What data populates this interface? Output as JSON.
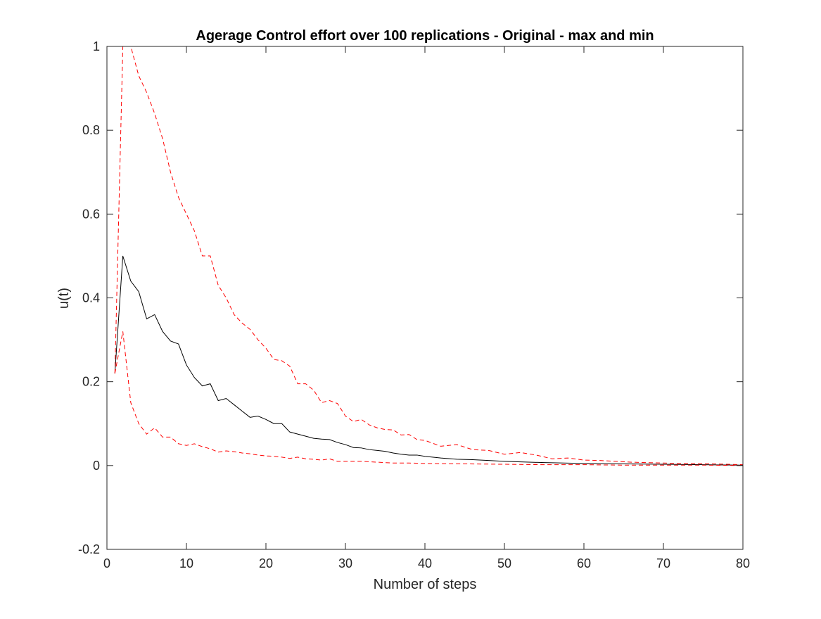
{
  "chart_data": {
    "type": "line",
    "title": "Agerage Control effort over 100 replications - Original - max and min",
    "xlabel": "Number of steps",
    "ylabel": "u(t)",
    "xlim": [
      0,
      80
    ],
    "ylim": [
      -0.2,
      1
    ],
    "xticks": [
      0,
      10,
      20,
      30,
      40,
      50,
      60,
      70,
      80
    ],
    "yticks": [
      -0.2,
      0,
      0.2,
      0.4,
      0.6,
      0.8,
      1
    ],
    "xtick_labels": [
      "0",
      "10",
      "20",
      "30",
      "40",
      "50",
      "60",
      "70",
      "80"
    ],
    "ytick_labels": [
      "-0.2",
      "0",
      "0.2",
      "0.4",
      "0.6",
      "0.8",
      "1"
    ],
    "grid": false,
    "legend": "none",
    "series": [
      {
        "role": "average",
        "color": "#000000",
        "style": "solid",
        "x": [
          1,
          2,
          3,
          4,
          5,
          6,
          7,
          8,
          9,
          10,
          11,
          12,
          13,
          14,
          15,
          16,
          17,
          18,
          19,
          20,
          21,
          22,
          23,
          24,
          25,
          26,
          27,
          28,
          29,
          30,
          31,
          32,
          33,
          34,
          35,
          36,
          37,
          38,
          39,
          40,
          42,
          44,
          46,
          48,
          50,
          55,
          60,
          65,
          70,
          75,
          80
        ],
        "y": [
          0.22,
          0.5,
          0.44,
          0.415,
          0.35,
          0.36,
          0.32,
          0.297,
          0.29,
          0.24,
          0.21,
          0.19,
          0.195,
          0.155,
          0.16,
          0.145,
          0.13,
          0.115,
          0.118,
          0.11,
          0.1,
          0.1,
          0.08,
          0.075,
          0.07,
          0.065,
          0.063,
          0.062,
          0.055,
          0.05,
          0.043,
          0.042,
          0.038,
          0.036,
          0.034,
          0.03,
          0.027,
          0.025,
          0.025,
          0.022,
          0.018,
          0.015,
          0.014,
          0.012,
          0.01,
          0.007,
          0.005,
          0.004,
          0.003,
          0.002,
          0.001
        ]
      },
      {
        "role": "max",
        "color": "#ff0000",
        "style": "dashed",
        "x": [
          1,
          2,
          3,
          4,
          5,
          6,
          7,
          8,
          9,
          10,
          11,
          12,
          13,
          14,
          15,
          16,
          17,
          18,
          19,
          20,
          21,
          22,
          23,
          24,
          25,
          26,
          27,
          28,
          29,
          30,
          31,
          32,
          33,
          34,
          35,
          36,
          37,
          38,
          39,
          40,
          42,
          44,
          46,
          48,
          50,
          52,
          54,
          56,
          58,
          60,
          62,
          64,
          66,
          68,
          70,
          72,
          74,
          76,
          78,
          80
        ],
        "y": [
          0.22,
          1.0,
          1.0,
          0.93,
          0.89,
          0.84,
          0.78,
          0.7,
          0.64,
          0.6,
          0.56,
          0.5,
          0.5,
          0.43,
          0.4,
          0.36,
          0.34,
          0.325,
          0.3,
          0.28,
          0.253,
          0.25,
          0.237,
          0.195,
          0.195,
          0.18,
          0.15,
          0.155,
          0.148,
          0.118,
          0.105,
          0.11,
          0.097,
          0.09,
          0.086,
          0.085,
          0.073,
          0.074,
          0.062,
          0.06,
          0.046,
          0.05,
          0.038,
          0.036,
          0.027,
          0.031,
          0.025,
          0.016,
          0.018,
          0.013,
          0.012,
          0.01,
          0.008,
          0.007,
          0.006,
          0.005,
          0.005,
          0.004,
          0.003,
          0.002
        ]
      },
      {
        "role": "min",
        "color": "#ff0000",
        "style": "dashed",
        "x": [
          1,
          2,
          3,
          4,
          5,
          6,
          7,
          8,
          9,
          10,
          11,
          12,
          13,
          14,
          15,
          16,
          17,
          18,
          19,
          20,
          21,
          22,
          23,
          24,
          25,
          26,
          27,
          28,
          29,
          30,
          32,
          34,
          36,
          38,
          40,
          45,
          50,
          55,
          60,
          65,
          70,
          75,
          80
        ],
        "y": [
          0.22,
          0.32,
          0.15,
          0.1,
          0.075,
          0.09,
          0.068,
          0.068,
          0.052,
          0.048,
          0.052,
          0.045,
          0.04,
          0.032,
          0.035,
          0.033,
          0.03,
          0.028,
          0.025,
          0.023,
          0.022,
          0.02,
          0.017,
          0.02,
          0.016,
          0.015,
          0.013,
          0.016,
          0.01,
          0.01,
          0.01,
          0.008,
          0.006,
          0.006,
          0.005,
          0.004,
          0.003,
          0.002,
          0.002,
          0.001,
          0.001,
          0.001,
          0.0
        ]
      }
    ]
  }
}
